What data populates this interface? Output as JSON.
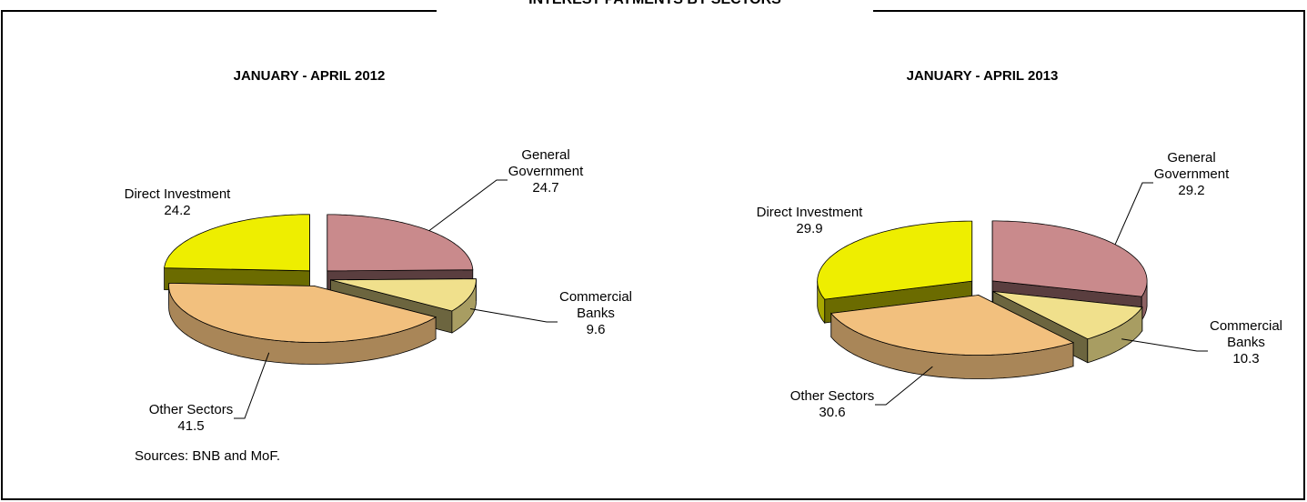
{
  "title": "INTEREST PAYMENTS BY SECTORS",
  "source": "Sources: BNB and MoF.",
  "chart_data": [
    {
      "type": "pie",
      "title": "JANUARY - APRIL  2012",
      "categories": [
        "General Government",
        "Commercial Banks",
        "Other Sectors",
        "Direct Investment"
      ],
      "values": [
        24.7,
        9.6,
        41.5,
        24.2
      ],
      "colors": [
        "#c98a8c",
        "#f0e08c",
        "#f2c07e",
        "#eeee00"
      ]
    },
    {
      "type": "pie",
      "title": "JANUARY - APRIL  2013",
      "categories": [
        "General Government",
        "Commercial Banks",
        "Other Sectors",
        "Direct Investment"
      ],
      "values": [
        29.2,
        10.3,
        30.6,
        29.9
      ],
      "colors": [
        "#c98a8c",
        "#f0e08c",
        "#f2c07e",
        "#eeee00"
      ]
    }
  ]
}
